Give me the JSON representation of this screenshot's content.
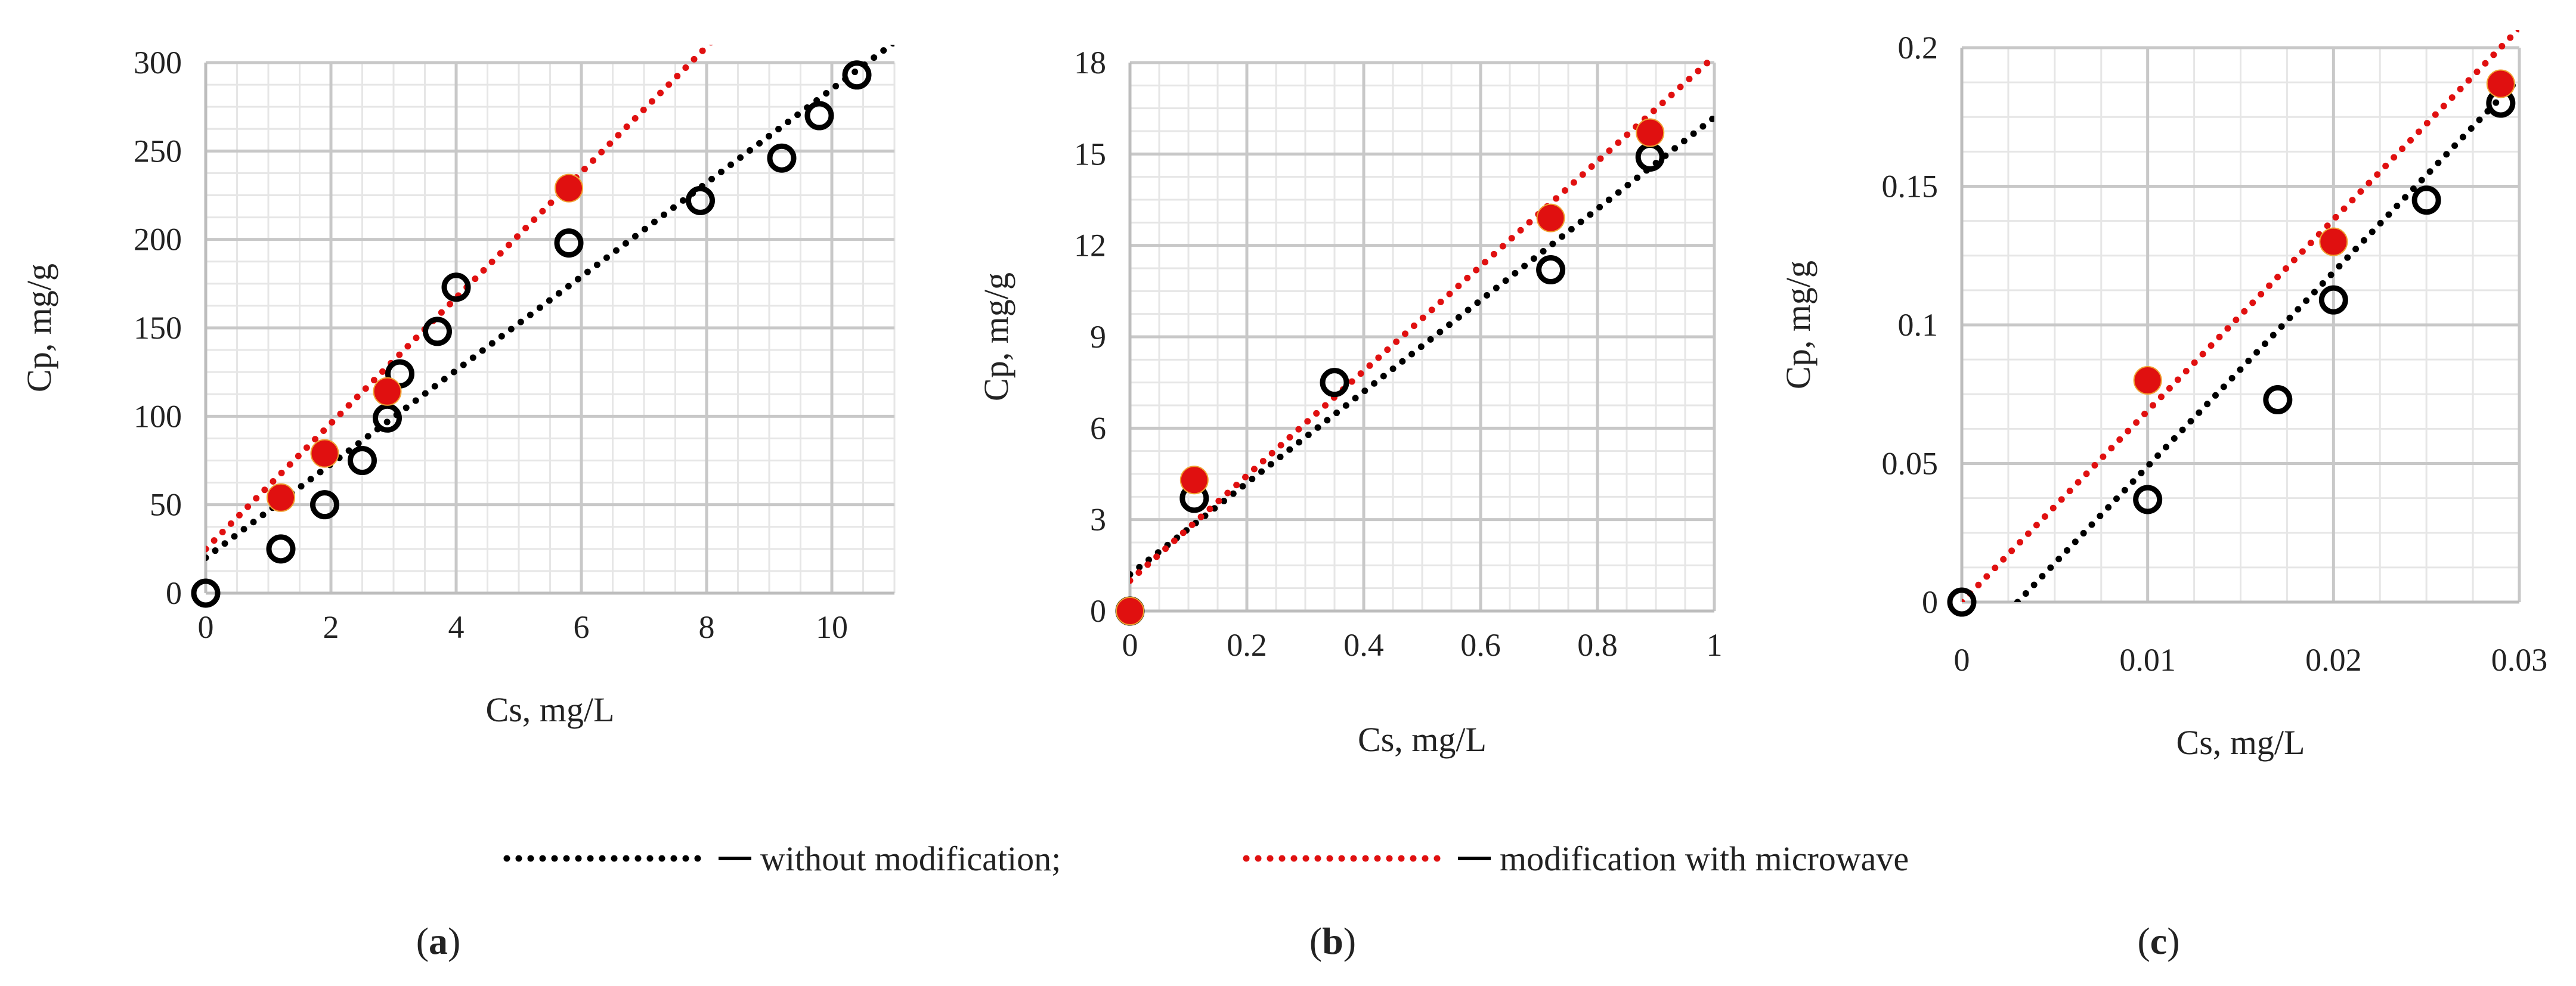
{
  "figure": {
    "legend": {
      "items": [
        {
          "label": "without modification;",
          "color": "#000000"
        },
        {
          "label": "modification with microwave",
          "color": "#e01010"
        }
      ]
    },
    "panel_labels": [
      "(a)",
      "(b)",
      "(c)"
    ]
  },
  "chart_data": [
    {
      "type": "scatter",
      "panel": "(a)",
      "xlabel": "Cs, mg/L",
      "ylabel": "Cp, mg/g",
      "xlim": [
        0,
        11
      ],
      "ylim": [
        0,
        300
      ],
      "xticks": [
        0,
        2,
        4,
        6,
        8,
        10
      ],
      "xtick_labels": [
        "0",
        "2",
        "4",
        "6",
        "8",
        "10"
      ],
      "yticks": [
        0,
        50,
        100,
        150,
        200,
        250,
        300
      ],
      "ytick_labels": [
        "0",
        "50",
        "100",
        "150",
        "200",
        "250",
        "300"
      ],
      "grid": true,
      "series": [
        {
          "name": "without modification",
          "marker": "open-circle",
          "color": "#000000",
          "x": [
            0,
            1.2,
            1.9,
            2.5,
            2.9,
            3.1,
            3.7,
            4.0,
            5.8,
            7.9,
            9.2,
            9.8,
            10.4
          ],
          "y": [
            0,
            25,
            50,
            75,
            99,
            124,
            148,
            173,
            198,
            222,
            246,
            270,
            293
          ],
          "trendline": {
            "slope": 26.5,
            "intercept": 20
          }
        },
        {
          "name": "modification with microwave",
          "marker": "filled-circle",
          "color": "#e01010",
          "x": [
            1.2,
            1.9,
            2.9,
            5.8
          ],
          "y": [
            54,
            79,
            114,
            229
          ],
          "trendline": {
            "slope": 35.5,
            "intercept": 25
          }
        }
      ]
    },
    {
      "type": "scatter",
      "panel": "(b)",
      "xlabel": "Cs, mg/L",
      "ylabel": "Cp, mg/g",
      "xlim": [
        0,
        1
      ],
      "ylim": [
        0,
        18
      ],
      "xticks": [
        0,
        0.2,
        0.4,
        0.6,
        0.8,
        1
      ],
      "xtick_labels": [
        "0",
        "0.2",
        "0.4",
        "0.6",
        "0.8",
        "1"
      ],
      "yticks": [
        0,
        3,
        6,
        9,
        12,
        15,
        18
      ],
      "ytick_labels": [
        "0",
        "3",
        "6",
        "9",
        "12",
        "15",
        "18"
      ],
      "grid": true,
      "series": [
        {
          "name": "without modification",
          "marker": "open-circle",
          "color": "#000000",
          "x": [
            0,
            0.11,
            0.35,
            0.72,
            0.89
          ],
          "y": [
            0,
            3.7,
            7.5,
            11.2,
            14.9
          ],
          "trendline": {
            "slope": 15.0,
            "intercept": 1.2
          }
        },
        {
          "name": "modification with microwave",
          "marker": "filled-circle",
          "color": "#e01010",
          "x": [
            0,
            0.11,
            0.72,
            0.89
          ],
          "y": [
            0,
            4.3,
            12.9,
            15.7
          ],
          "trendline": {
            "slope": 17.2,
            "intercept": 1.0
          }
        }
      ]
    },
    {
      "type": "scatter",
      "panel": "(c)",
      "xlabel": "Cs, mg/L",
      "ylabel": "Cp, mg/g",
      "xlim": [
        0,
        0.03
      ],
      "ylim": [
        0,
        0.2
      ],
      "xticks": [
        0,
        0.01,
        0.02,
        0.03
      ],
      "xtick_labels": [
        "0",
        "0.01",
        "0.02",
        "0.03"
      ],
      "yticks": [
        0,
        0.05,
        0.1,
        0.15,
        0.2
      ],
      "ytick_labels": [
        "0",
        "0.05",
        "0.1",
        "0.15",
        "0.2"
      ],
      "grid": true,
      "series": [
        {
          "name": "without modification",
          "marker": "open-circle",
          "color": "#000000",
          "x": [
            0,
            0.01,
            0.017,
            0.02,
            0.025,
            0.029
          ],
          "y": [
            0,
            0.037,
            0.073,
            0.109,
            0.145,
            0.18
          ],
          "trendline": {
            "slope": 7.0,
            "intercept": -0.021
          }
        },
        {
          "name": "modification with microwave",
          "marker": "filled-circle",
          "color": "#e01010",
          "x": [
            0.01,
            0.02,
            0.029
          ],
          "y": [
            0.08,
            0.13,
            0.187
          ],
          "trendline": {
            "slope": 6.9,
            "intercept": 0
          }
        }
      ]
    }
  ]
}
